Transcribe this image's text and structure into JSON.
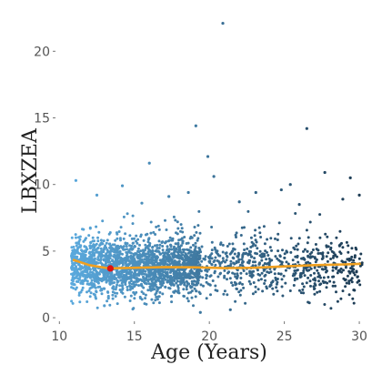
{
  "chart_data": {
    "type": "scatter",
    "title": "",
    "xlabel": "Age (Years)",
    "ylabel": "LBXZEA",
    "xlim": [
      9.8,
      30.3
    ],
    "ylim": [
      -0.2,
      23.3
    ],
    "x_ticks": [
      10,
      15,
      20,
      25,
      30
    ],
    "y_ticks": [
      0,
      5,
      10,
      15,
      20
    ],
    "x_tick_labels": [
      "10",
      "15",
      "20",
      "25",
      "30"
    ],
    "y_tick_labels": [
      "0",
      "5",
      "10",
      "15",
      "20"
    ],
    "grid": false,
    "legend": "none",
    "colors": {
      "point_low_age": "#5aa9dd",
      "point_high_age": "#1c3a52",
      "smooth_line": "#f0a020",
      "highlight_point": "#dd1111"
    },
    "density_summary": {
      "x_range": [
        10.8,
        30.2
      ],
      "main_y_band": [
        1.0,
        7.0
      ],
      "note": "dense jittered cloud of several thousand points"
    },
    "outliers": [
      {
        "x": 20.9,
        "y": 22.1
      },
      {
        "x": 19.1,
        "y": 14.4
      },
      {
        "x": 26.5,
        "y": 14.2
      },
      {
        "x": 19.9,
        "y": 12.1
      },
      {
        "x": 16.0,
        "y": 11.6
      },
      {
        "x": 11.1,
        "y": 10.3
      },
      {
        "x": 20.3,
        "y": 10.6
      },
      {
        "x": 25.4,
        "y": 10.0
      },
      {
        "x": 27.7,
        "y": 10.9
      },
      {
        "x": 29.4,
        "y": 10.5
      },
      {
        "x": 24.8,
        "y": 9.6
      },
      {
        "x": 23.1,
        "y": 9.4
      },
      {
        "x": 28.9,
        "y": 8.9
      },
      {
        "x": 14.2,
        "y": 9.9
      },
      {
        "x": 12.5,
        "y": 9.2
      },
      {
        "x": 17.3,
        "y": 9.1
      },
      {
        "x": 22.0,
        "y": 8.7
      },
      {
        "x": 26.0,
        "y": 8.5
      },
      {
        "x": 30.0,
        "y": 9.2
      },
      {
        "x": 15.5,
        "y": 8.6
      },
      {
        "x": 18.6,
        "y": 9.4
      },
      {
        "x": 21.4,
        "y": 0.6
      },
      {
        "x": 19.4,
        "y": 0.4
      },
      {
        "x": 13.0,
        "y": 0.9
      }
    ],
    "smooth_line": {
      "x": [
        10.9,
        12.0,
        13.3,
        15.0,
        17.0,
        19.0,
        21.0,
        23.0,
        25.0,
        27.0,
        29.0,
        30.1
      ],
      "y": [
        4.35,
        3.95,
        3.7,
        3.75,
        3.8,
        3.78,
        3.72,
        3.75,
        3.85,
        3.95,
        4.0,
        4.05
      ]
    },
    "highlight_point": {
      "x": 13.4,
      "y": 3.7
    }
  }
}
